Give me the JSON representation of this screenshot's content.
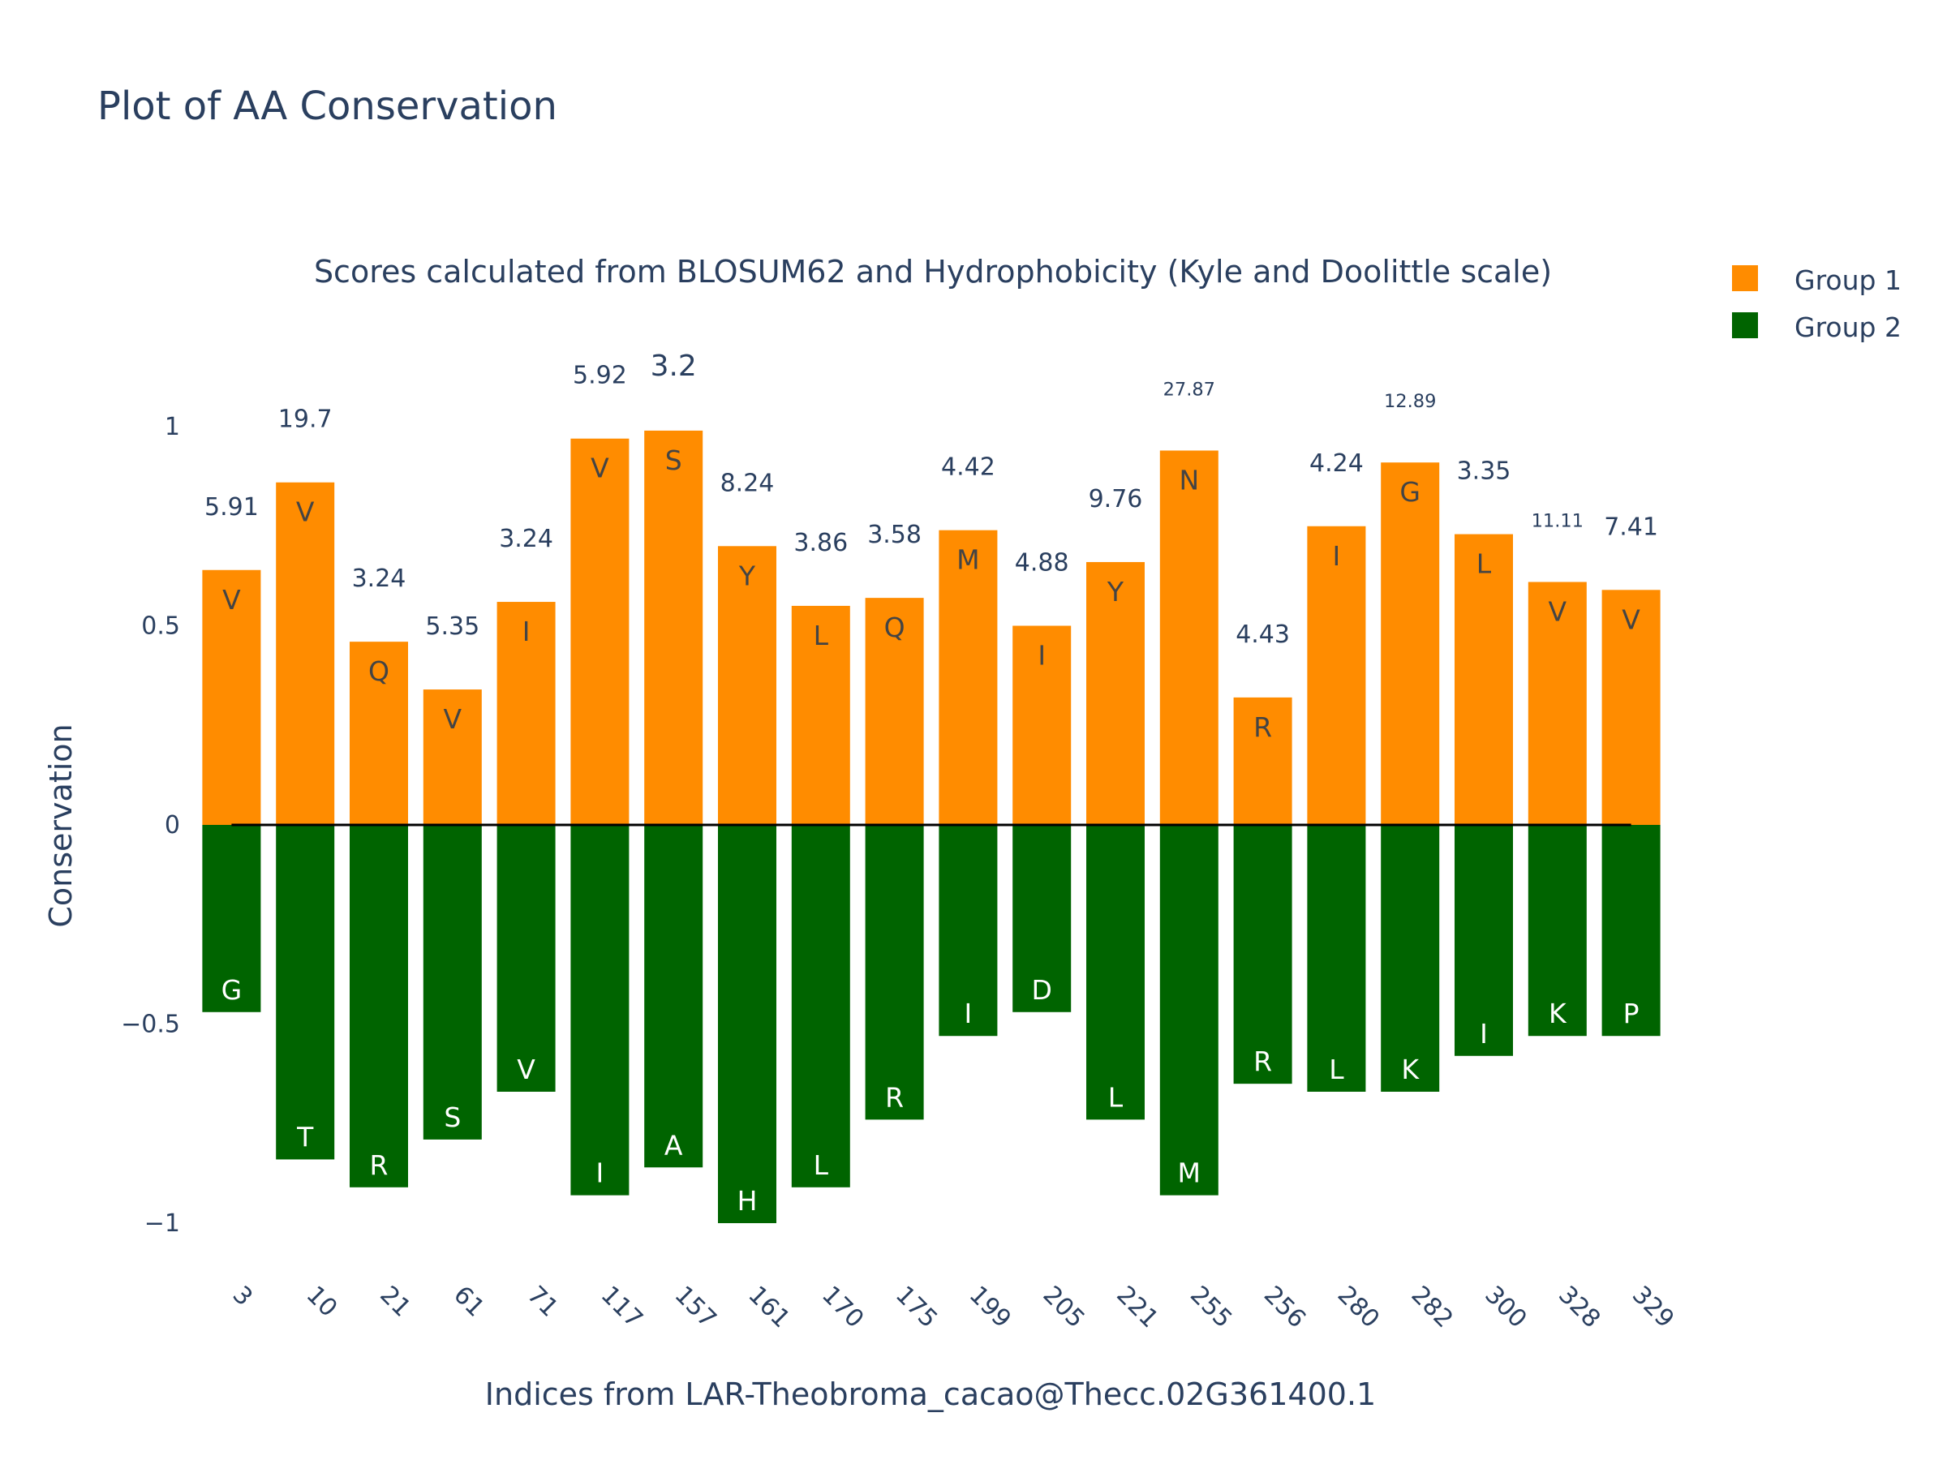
{
  "chart_data": {
    "type": "bar",
    "title": "Plot of AA Conservation",
    "subtitle": "Scores calculated from BLOSUM62 and Hydrophobicity (Kyle and Doolittle scale)",
    "xlabel": "Indices from LAR-Theobroma_cacao@Thecc.02G361400.1",
    "ylabel": "Conservation",
    "ylim": [
      -1.1,
      1.1
    ],
    "yticks": [
      1,
      0.5,
      0,
      -0.5,
      -1
    ],
    "ytick_labels": [
      "1",
      "0.5",
      "0",
      "−0.5",
      "−1"
    ],
    "grid": false,
    "legend_position": "top-right",
    "categories": [
      "3",
      "10",
      "21",
      "61",
      "71",
      "117",
      "157",
      "161",
      "170",
      "175",
      "199",
      "205",
      "221",
      "255",
      "256",
      "280",
      "282",
      "300",
      "328",
      "329"
    ],
    "series": [
      {
        "name": "Group 1",
        "color": "#ff8c00",
        "values": [
          0.64,
          0.86,
          0.46,
          0.34,
          0.56,
          0.97,
          0.99,
          0.7,
          0.55,
          0.57,
          0.74,
          0.5,
          0.66,
          0.94,
          0.32,
          0.75,
          0.91,
          0.73,
          0.61,
          0.59
        ],
        "letters": [
          "V",
          "V",
          "Q",
          "V",
          "I",
          "V",
          "S",
          "Y",
          "L",
          "Q",
          "M",
          "I",
          "Y",
          "N",
          "R",
          "I",
          "G",
          "L",
          "V",
          "V"
        ]
      },
      {
        "name": "Group 2",
        "color": "#006400",
        "values": [
          -0.47,
          -0.84,
          -0.91,
          -0.79,
          -0.67,
          -0.93,
          -0.86,
          -1.0,
          -0.91,
          -0.74,
          -0.53,
          -0.47,
          -0.74,
          -0.93,
          -0.65,
          -0.67,
          -0.67,
          -0.58,
          -0.53,
          -0.53
        ],
        "letters": [
          "G",
          "T",
          "R",
          "S",
          "V",
          "I",
          "A",
          "H",
          "L",
          "R",
          "I",
          "D",
          "L",
          "M",
          "R",
          "L",
          "K",
          "I",
          "K",
          "P"
        ]
      }
    ],
    "score_labels": [
      "5.91",
      "19.7",
      "3.24",
      "5.35",
      "3.24",
      "5.92",
      "3.2",
      "8.24",
      "3.86",
      "3.58",
      "4.42",
      "4.88",
      "9.76",
      "27.87",
      "4.43",
      "4.24",
      "12.89",
      "3.35",
      "11.11",
      "7.41"
    ],
    "score_label_sizes": [
      1,
      1,
      1,
      1,
      1,
      1,
      1.2,
      1,
      1,
      1,
      1,
      1,
      1,
      0.75,
      1,
      1,
      0.75,
      1,
      0.75,
      1
    ]
  }
}
